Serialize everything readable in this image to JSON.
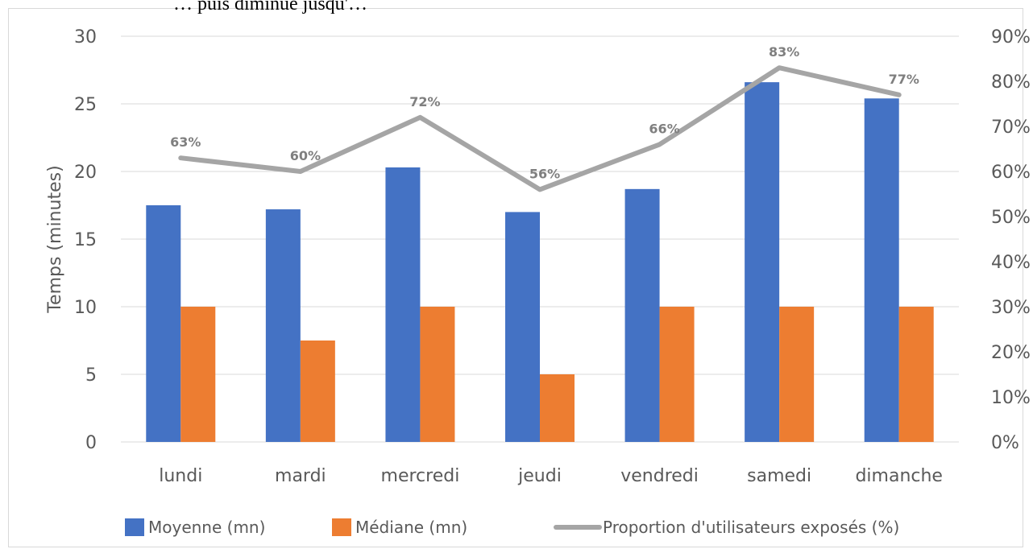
{
  "top_text": "… puis diminue jusqu'…",
  "chart_data": {
    "type": "bar",
    "categories": [
      "lundi",
      "mardi",
      "mercredi",
      "jeudi",
      "vendredi",
      "samedi",
      "dimanche"
    ],
    "series": [
      {
        "name": "Moyenne (mn)",
        "type": "bar",
        "axis": "left",
        "color": "#4472C4",
        "values": [
          17.5,
          17.2,
          20.3,
          17.0,
          18.7,
          26.6,
          25.4
        ]
      },
      {
        "name": "Médiane (mn)",
        "type": "bar",
        "axis": "left",
        "color": "#ED7D31",
        "values": [
          10,
          7.5,
          10,
          5,
          10,
          10,
          10
        ]
      },
      {
        "name": "Proportion d'utilisateurs exposés (%)",
        "type": "line",
        "axis": "right",
        "color": "#A5A5A5",
        "values": [
          63,
          60,
          72,
          56,
          66,
          83,
          77
        ],
        "data_labels": [
          "63%",
          "60%",
          "72%",
          "56%",
          "66%",
          "83%",
          "77%"
        ]
      }
    ],
    "ylabel": "Temps (minutes)",
    "ylim": [
      0,
      30
    ],
    "yticks": [
      "0",
      "5",
      "10",
      "15",
      "20",
      "25",
      "30"
    ],
    "y2lim": [
      0,
      90
    ],
    "y2ticks": [
      "0%",
      "10%",
      "20%",
      "30%",
      "40%",
      "50%",
      "60%",
      "70%",
      "80%",
      "90%"
    ],
    "grid": true,
    "legend_position": "bottom"
  }
}
